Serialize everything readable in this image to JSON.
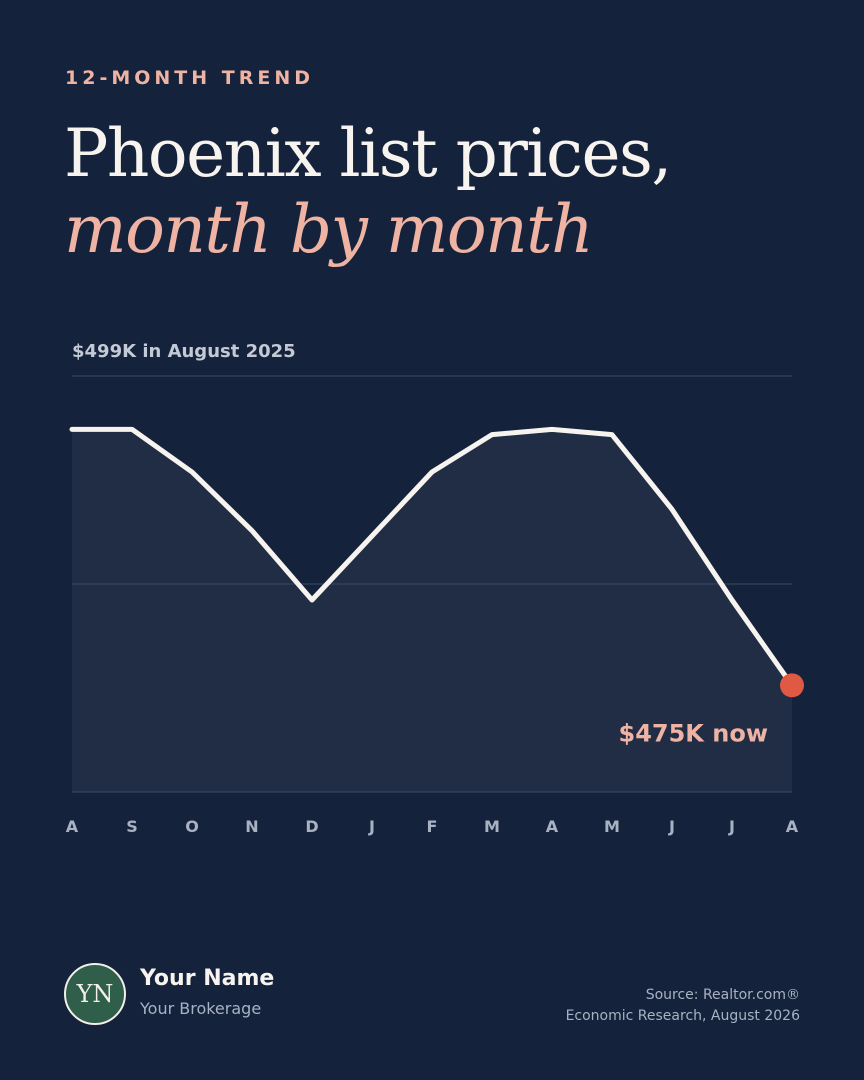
{
  "header": {
    "eyebrow": "12-MONTH TREND",
    "title_main": "Phoenix list prices, ",
    "title_accent": "month by month"
  },
  "chart_data": {
    "type": "area",
    "title": "Phoenix list prices, month by month",
    "categories": [
      "A",
      "S",
      "O",
      "N",
      "D",
      "J",
      "F",
      "M",
      "A",
      "M",
      "J",
      "J",
      "A"
    ],
    "values": [
      499,
      499,
      495,
      489.5,
      483,
      489,
      495,
      498.5,
      499,
      498.5,
      491.5,
      483,
      475
    ],
    "unit": "$K",
    "ylim": [
      465,
      504
    ],
    "top_label": "$499K in August 2025",
    "end_label": "$475K now",
    "grid": true,
    "legend": "none",
    "colors": {
      "line": "#f7f3ee",
      "area": "#202d45",
      "end_marker": "#e05a43",
      "end_label": "#efb3a3",
      "grid": "#34425c",
      "axis_label": "#a8b2c3",
      "top_label": "#c3cad6"
    }
  },
  "footer": {
    "avatar_initials": "YN",
    "name": "Your Name",
    "brokerage": "Your Brokerage",
    "source_line1": "Source: Realtor.com®",
    "source_line2": "Economic Research, August 2026",
    "avatar_color": "#2f5e4a"
  }
}
